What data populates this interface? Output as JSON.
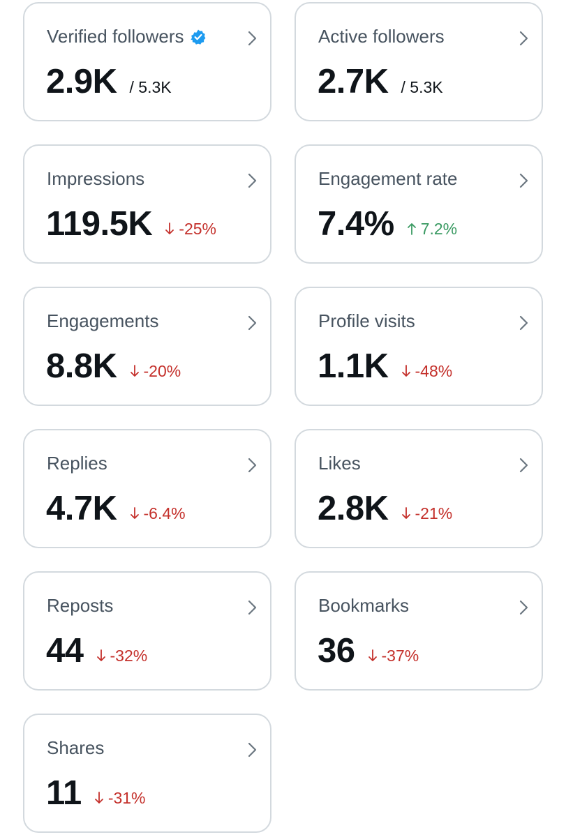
{
  "colors": {
    "negative": "#c4302b",
    "positive": "#3a9a62",
    "verified": "#1d9bf0",
    "border": "#d3d9de"
  },
  "cards": [
    {
      "name": "verified-followers",
      "title": "Verified followers",
      "value": "2.9K",
      "sub": "/ 5.3K",
      "verified_icon": "verified-badge-icon"
    },
    {
      "name": "active-followers",
      "title": "Active followers",
      "value": "2.7K",
      "sub": "/ 5.3K"
    },
    {
      "name": "impressions",
      "title": "Impressions",
      "value": "119.5K",
      "change": "-25%",
      "direction": "down"
    },
    {
      "name": "engagement-rate",
      "title": "Engagement rate",
      "value": "7.4%",
      "change": "7.2%",
      "direction": "up"
    },
    {
      "name": "engagements",
      "title": "Engagements",
      "value": "8.8K",
      "change": "-20%",
      "direction": "down"
    },
    {
      "name": "profile-visits",
      "title": "Profile visits",
      "value": "1.1K",
      "change": "-48%",
      "direction": "down"
    },
    {
      "name": "replies",
      "title": "Replies",
      "value": "4.7K",
      "change": "-6.4%",
      "direction": "down"
    },
    {
      "name": "likes",
      "title": "Likes",
      "value": "2.8K",
      "change": "-21%",
      "direction": "down"
    },
    {
      "name": "reposts",
      "title": "Reposts",
      "value": "44",
      "change": "-32%",
      "direction": "down"
    },
    {
      "name": "bookmarks",
      "title": "Bookmarks",
      "value": "36",
      "change": "-37%",
      "direction": "down"
    },
    {
      "name": "shares",
      "title": "Shares",
      "value": "11",
      "change": "-31%",
      "direction": "down"
    }
  ]
}
